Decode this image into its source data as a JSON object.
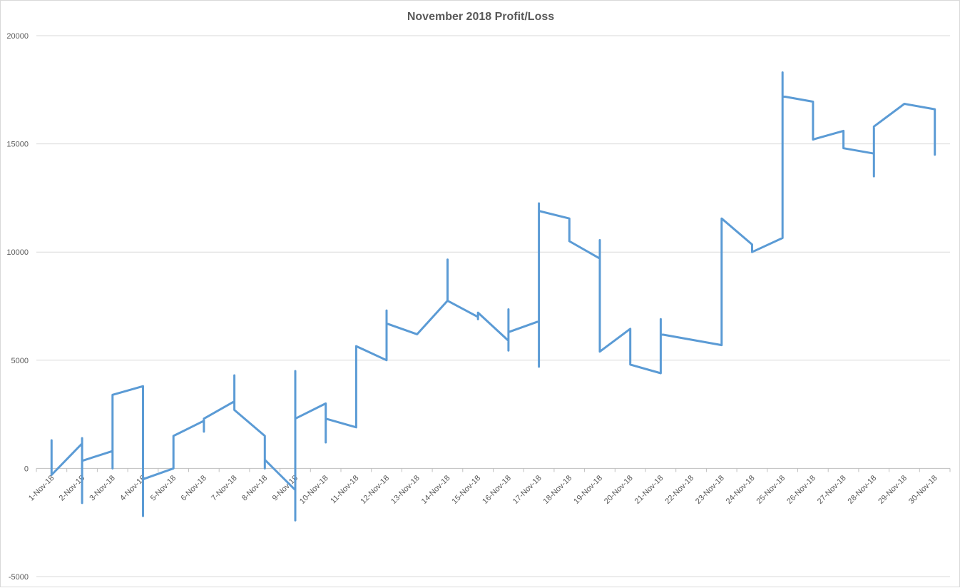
{
  "chart_data": {
    "type": "line",
    "title": "November 2018 Profit/Loss",
    "xlabel": "",
    "ylabel": "",
    "ylim": [
      -5000,
      20000
    ],
    "y_ticks": [
      "-5000",
      "0",
      "5000",
      "10000",
      "15000",
      "20000"
    ],
    "y_tick_values": [
      -5000,
      0,
      5000,
      10000,
      15000,
      20000
    ],
    "grid": true,
    "legend": "none",
    "categories": [
      "1-Nov-18",
      "2-Nov-18",
      "3-Nov-18",
      "4-Nov-18",
      "5-Nov-18",
      "6-Nov-18",
      "7-Nov-18",
      "8-Nov-18",
      "9-Nov-18",
      "10-Nov-18",
      "11-Nov-18",
      "12-Nov-18",
      "13-Nov-18",
      "14-Nov-18",
      "15-Nov-18",
      "16-Nov-18",
      "17-Nov-18",
      "18-Nov-18",
      "19-Nov-18",
      "20-Nov-18",
      "21-Nov-18",
      "22-Nov-18",
      "23-Nov-18",
      "24-Nov-18",
      "25-Nov-18",
      "26-Nov-18",
      "27-Nov-18",
      "28-Nov-18",
      "29-Nov-18",
      "30-Nov-18"
    ],
    "series": [
      {
        "color": "#5b9bd5",
        "points": [
          [
            1,
            1300
          ],
          [
            1,
            -300
          ],
          [
            2,
            1150
          ],
          [
            2,
            1400
          ],
          [
            2,
            -1600
          ],
          [
            2,
            350
          ],
          [
            3,
            800
          ],
          [
            3,
            0
          ],
          [
            3,
            3400
          ],
          [
            4,
            3800
          ],
          [
            4,
            -2200
          ],
          [
            4,
            -500
          ],
          [
            5,
            0
          ],
          [
            5,
            1500
          ],
          [
            6,
            2200
          ],
          [
            6,
            1700
          ],
          [
            6,
            2300
          ],
          [
            7,
            3100
          ],
          [
            7,
            4300
          ],
          [
            7,
            2700
          ],
          [
            8,
            1500
          ],
          [
            8,
            0
          ],
          [
            8,
            400
          ],
          [
            9,
            -1000
          ],
          [
            9,
            -2400
          ],
          [
            9,
            4500
          ],
          [
            9,
            2300
          ],
          [
            10,
            3000
          ],
          [
            10,
            1200
          ],
          [
            10,
            2300
          ],
          [
            11,
            1900
          ],
          [
            11,
            5650
          ],
          [
            12,
            5000
          ],
          [
            12,
            7300
          ],
          [
            12,
            6700
          ],
          [
            13,
            6200
          ],
          [
            14,
            7750
          ],
          [
            14,
            9650
          ],
          [
            14,
            7750
          ],
          [
            15,
            7000
          ],
          [
            15,
            6900
          ],
          [
            15,
            7200
          ],
          [
            16,
            5900
          ],
          [
            16,
            5450
          ],
          [
            16,
            7350
          ],
          [
            16,
            6300
          ],
          [
            17,
            6800
          ],
          [
            17,
            4700
          ],
          [
            17,
            12250
          ],
          [
            17,
            11900
          ],
          [
            18,
            11550
          ],
          [
            18,
            10500
          ],
          [
            19,
            9700
          ],
          [
            19,
            10550
          ],
          [
            19,
            5400
          ],
          [
            20,
            6450
          ],
          [
            20,
            4800
          ],
          [
            21,
            4400
          ],
          [
            21,
            6900
          ],
          [
            21,
            6200
          ],
          [
            23,
            5700
          ],
          [
            23,
            11550
          ],
          [
            24,
            10350
          ],
          [
            24,
            10000
          ],
          [
            25,
            10650
          ],
          [
            25,
            18300
          ],
          [
            25,
            17200
          ],
          [
            26,
            16950
          ],
          [
            26,
            15200
          ],
          [
            27,
            15600
          ],
          [
            27,
            14800
          ],
          [
            28,
            14550
          ],
          [
            28,
            13500
          ],
          [
            28,
            15800
          ],
          [
            29,
            16850
          ],
          [
            30,
            16600
          ],
          [
            30,
            14500
          ]
        ]
      }
    ]
  }
}
